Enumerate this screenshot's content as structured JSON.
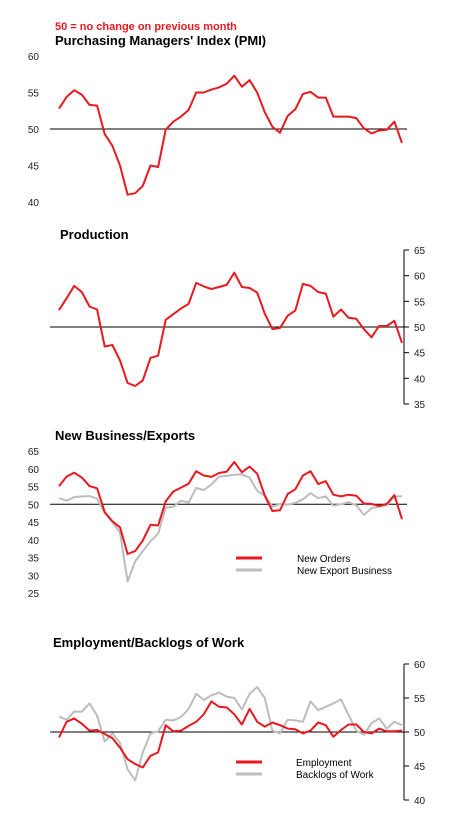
{
  "note": "50 =  no change on previous month",
  "colors": {
    "red": "#e8191f",
    "grey": "#bdbdbd",
    "ref": "#000000"
  },
  "chart_data": [
    {
      "type": "line",
      "title": "Purchasing Managers' Index (PMI)",
      "ylim": [
        40,
        60
      ],
      "yticks": [
        "40",
        "45",
        "50",
        "55",
        "60"
      ],
      "reference": 50,
      "series": [
        {
          "color": "#e8191f",
          "values": [
            52.8,
            54.4,
            55.3,
            54.7,
            53.3,
            53.2,
            49.3,
            47.7,
            45.0,
            41.0,
            41.2,
            42.2,
            45.0,
            44.8,
            49.9,
            51.0,
            51.7,
            52.6,
            55.0,
            55.0,
            55.4,
            55.7,
            56.2,
            57.3,
            55.8,
            56.7,
            55.0,
            52.3,
            50.3,
            49.5,
            51.8,
            52.7,
            54.8,
            55.1,
            54.3,
            54.3,
            51.7,
            51.7,
            51.7,
            51.5,
            50.1,
            49.4,
            49.8,
            49.9,
            51.0,
            48.1
          ]
        }
      ]
    },
    {
      "type": "line",
      "title": "Production",
      "ylim": [
        35,
        65
      ],
      "yticks": [
        "35",
        "40",
        "45",
        "50",
        "55",
        "60",
        "65"
      ],
      "reference": 50,
      "series": [
        {
          "color": "#e8191f",
          "values": [
            53.3,
            55.6,
            58.0,
            56.8,
            54.0,
            53.4,
            46.2,
            46.5,
            43.5,
            39.1,
            38.5,
            39.6,
            44.0,
            44.4,
            51.4,
            52.5,
            53.6,
            54.5,
            58.6,
            57.9,
            57.4,
            57.8,
            58.2,
            60.6,
            57.8,
            57.6,
            56.7,
            52.6,
            49.6,
            49.8,
            52.2,
            53.2,
            58.4,
            58.0,
            56.8,
            56.5,
            52.0,
            53.4,
            51.8,
            51.6,
            49.6,
            48.0,
            50.2,
            50.2,
            51.2,
            46.9
          ]
        }
      ]
    },
    {
      "type": "line",
      "title": "New Business/Exports",
      "ylim": [
        25,
        65
      ],
      "yticks": [
        "25",
        "30",
        "35",
        "40",
        "45",
        "50",
        "55",
        "60",
        "65"
      ],
      "reference": 50,
      "legend": "bottom-right",
      "series": [
        {
          "name": "New Orders",
          "color": "#e8191f",
          "values": [
            55.1,
            57.8,
            58.9,
            57.5,
            55.1,
            54.5,
            47.8,
            45.2,
            43.5,
            36.0,
            36.8,
            39.8,
            44.2,
            44.0,
            50.8,
            53.6,
            54.7,
            55.8,
            59.3,
            58.1,
            57.7,
            58.8,
            59.2,
            61.9,
            59.0,
            60.6,
            58.6,
            52.4,
            48.1,
            48.3,
            52.9,
            54.2,
            58.1,
            59.3,
            55.7,
            56.5,
            52.7,
            52.2,
            52.7,
            52.4,
            50.2,
            50.1,
            49.5,
            50.1,
            52.6,
            45.8
          ]
        },
        {
          "name": "New Export Business",
          "color": "#bdbdbd",
          "values": [
            51.7,
            51.0,
            52.0,
            52.2,
            52.3,
            51.6,
            47.5,
            45.0,
            42.0,
            28.2,
            33.9,
            36.8,
            39.6,
            41.7,
            49.0,
            49.3,
            51.0,
            50.5,
            54.6,
            54.0,
            55.6,
            57.8,
            58.0,
            58.3,
            58.4,
            57.5,
            53.8,
            52.4,
            49.3,
            50.1,
            49.9,
            50.4,
            51.4,
            53.1,
            51.7,
            52.2,
            49.6,
            50.0,
            50.6,
            49.7,
            47.0,
            48.9,
            49.3,
            49.7,
            52.1,
            52.3
          ]
        }
      ]
    },
    {
      "type": "line",
      "title": "Employment/Backlogs of Work",
      "ylim": [
        40,
        60
      ],
      "yticks": [
        "40",
        "45",
        "50",
        "55",
        "60"
      ],
      "reference": 50,
      "legend": "bottom-right",
      "series": [
        {
          "name": "Employment",
          "color": "#e8191f",
          "values": [
            49.2,
            51.5,
            52.0,
            51.2,
            50.2,
            50.3,
            49.7,
            49.1,
            47.7,
            46.0,
            45.3,
            44.8,
            46.5,
            47.0,
            51.0,
            50.1,
            50.2,
            50.9,
            51.5,
            52.6,
            54.5,
            53.7,
            53.6,
            52.6,
            51.1,
            53.4,
            51.5,
            50.8,
            51.4,
            51.0,
            50.5,
            50.4,
            49.8,
            50.2,
            51.4,
            51.0,
            49.3,
            50.3,
            51.1,
            51.1,
            50.0,
            49.8,
            50.5,
            50.1,
            50.1,
            50.2
          ]
        },
        {
          "name": "Backlogs of Work",
          "color": "#bdbdbd",
          "values": [
            52.3,
            51.8,
            53.0,
            53.0,
            54.2,
            52.4,
            48.6,
            49.8,
            48.4,
            44.5,
            42.9,
            47.0,
            49.8,
            50.1,
            51.8,
            51.7,
            52.2,
            53.4,
            55.6,
            54.7,
            55.4,
            55.8,
            55.2,
            55.0,
            53.3,
            55.6,
            56.6,
            55.0,
            50.2,
            49.8,
            51.8,
            51.7,
            51.5,
            54.5,
            53.2,
            53.7,
            54.2,
            54.8,
            52.5,
            50.2,
            49.6,
            51.3,
            52.0,
            50.5,
            51.5,
            51.0
          ]
        }
      ]
    }
  ]
}
